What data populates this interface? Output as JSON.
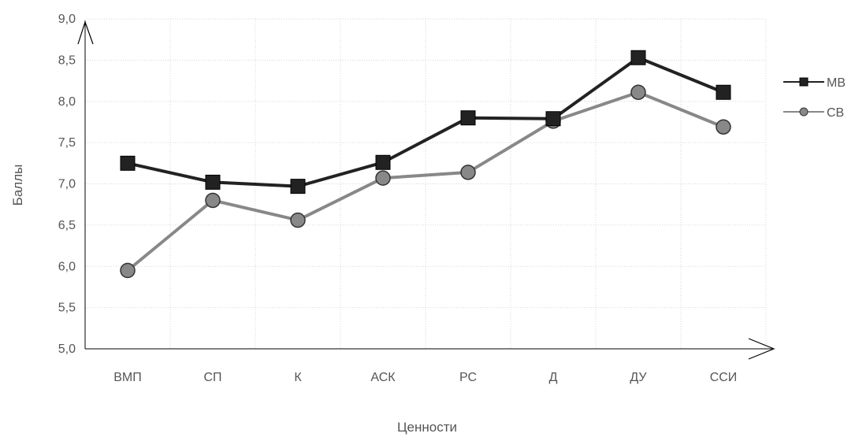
{
  "chart_data": {
    "type": "line",
    "xlabel": "Ценности",
    "ylabel": "Баллы",
    "categories": [
      "ВМП",
      "СП",
      "К",
      "АСК",
      "РС",
      "Д",
      "ДУ",
      "ССИ"
    ],
    "ylim": [
      5.0,
      9.0
    ],
    "yticks": [
      "5,0",
      "5,5",
      "6,0",
      "6,5",
      "7,0",
      "7,5",
      "8,0",
      "8,5",
      "9,0"
    ],
    "grid": true,
    "legend_position": "right",
    "series": [
      {
        "name": "МВ",
        "values": [
          7.25,
          7.02,
          6.97,
          7.26,
          7.8,
          7.79,
          8.53,
          8.11
        ],
        "color": "#222222",
        "marker": "square"
      },
      {
        "name": "СВ",
        "values": [
          5.95,
          6.8,
          6.56,
          7.07,
          7.14,
          7.76,
          8.11,
          7.69
        ],
        "color": "#888888",
        "marker": "circle"
      }
    ]
  }
}
